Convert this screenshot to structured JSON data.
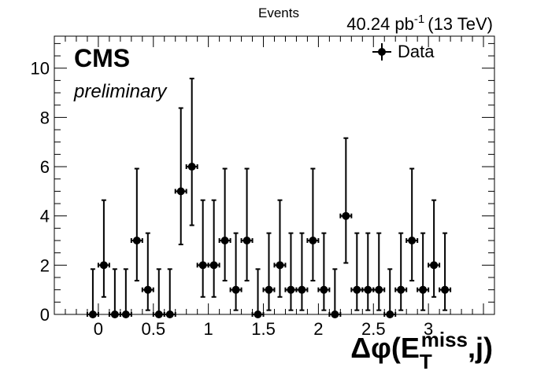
{
  "chart_data": {
    "type": "scatter",
    "ylabel": "Events",
    "lumi_label": "40.24 pb",
    "lumi_exponent": "-1",
    "energy_label": "(13 TeV)",
    "cms_label": "CMS",
    "status_label": "preliminary",
    "xlabel_symbol": "Δφ(E",
    "xlabel_sub": "T",
    "xlabel_sup": "miss",
    "xlabel_tail": ",j)",
    "xlim": [
      -0.4,
      3.6
    ],
    "ylim": [
      0,
      11.3
    ],
    "x_ticks": [
      0,
      0.5,
      1,
      1.5,
      2,
      2.5,
      3
    ],
    "x_tick_labels": [
      "0",
      "0.5",
      "1",
      "1.5",
      "2",
      "2.5",
      "3"
    ],
    "y_ticks": [
      0,
      2,
      4,
      6,
      8,
      10
    ],
    "y_tick_labels": [
      "0",
      "2",
      "4",
      "6",
      "8",
      "10"
    ],
    "legend": {
      "entries": [
        "Data"
      ],
      "placement": "top-right"
    },
    "series": [
      {
        "name": "Data",
        "bin_width": 0.1,
        "x": [
          -0.05,
          0.05,
          0.15,
          0.25,
          0.35,
          0.45,
          0.55,
          0.65,
          0.75,
          0.85,
          0.95,
          1.05,
          1.15,
          1.25,
          1.35,
          1.45,
          1.55,
          1.65,
          1.75,
          1.85,
          1.95,
          2.05,
          2.15,
          2.25,
          2.35,
          2.45,
          2.55,
          2.65,
          2.75,
          2.85,
          2.95,
          3.05,
          3.15
        ],
        "y": [
          0,
          2,
          0,
          0,
          3,
          1,
          0,
          0,
          5,
          6,
          2,
          2,
          3,
          1,
          3,
          0,
          1,
          2,
          1,
          1,
          3,
          1,
          0,
          4,
          1,
          1,
          1,
          0,
          1,
          3,
          1,
          2,
          1
        ],
        "y_err_low": [
          0,
          1.29,
          0,
          0,
          1.63,
          0.83,
          0,
          0,
          2.16,
          2.38,
          1.29,
          1.29,
          1.63,
          0.83,
          1.63,
          0,
          0.83,
          1.29,
          0.83,
          0.83,
          1.63,
          0.83,
          0,
          1.91,
          0.83,
          0.83,
          0.83,
          0,
          0.83,
          1.63,
          0.83,
          1.29,
          0.83
        ],
        "y_err_high": [
          1.84,
          2.64,
          1.84,
          1.84,
          2.92,
          2.3,
          1.84,
          1.84,
          3.38,
          3.58,
          2.64,
          2.64,
          2.92,
          2.3,
          2.92,
          1.84,
          2.3,
          2.64,
          2.3,
          2.3,
          2.92,
          2.3,
          1.84,
          3.16,
          2.3,
          2.3,
          2.3,
          1.84,
          2.3,
          2.92,
          2.3,
          2.64,
          2.3
        ]
      }
    ],
    "grid": false
  }
}
